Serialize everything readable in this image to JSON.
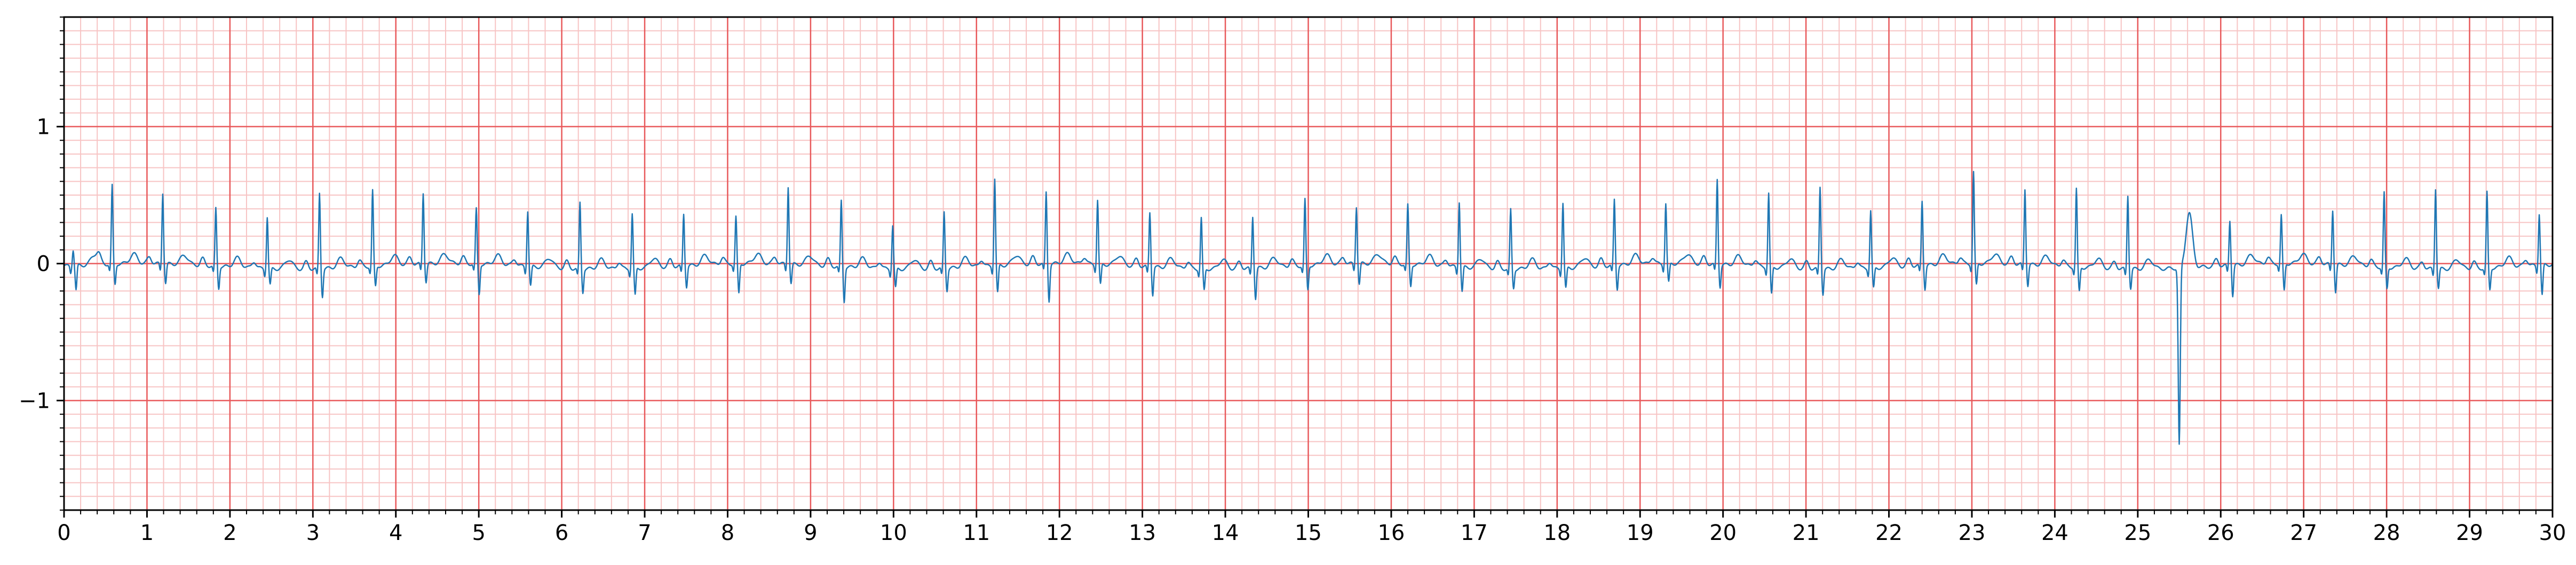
{
  "chart_data": {
    "type": "line",
    "title": "",
    "xlabel": "",
    "ylabel": "",
    "xlim": [
      0,
      30
    ],
    "ylim": [
      -1.8,
      1.8
    ],
    "x_major_ticks": [
      0,
      1,
      2,
      3,
      4,
      5,
      6,
      7,
      8,
      9,
      10,
      11,
      12,
      13,
      14,
      15,
      16,
      17,
      18,
      19,
      20,
      21,
      22,
      23,
      24,
      25,
      26,
      27,
      28,
      29,
      30
    ],
    "x_tick_labels": [
      "0",
      "1",
      "2",
      "3",
      "4",
      "5",
      "6",
      "7",
      "8",
      "9",
      "10",
      "11",
      "12",
      "13",
      "14",
      "15",
      "16",
      "17",
      "18",
      "19",
      "20",
      "21",
      "22",
      "23",
      "24",
      "25",
      "26",
      "27",
      "28",
      "29",
      "30"
    ],
    "x_minor_step": 0.2,
    "y_major_ticks": [
      -1,
      0,
      1
    ],
    "y_tick_labels": [
      "−1",
      "0",
      "1"
    ],
    "y_minor_step": 0.1,
    "grid": true,
    "legend": "none",
    "colors": {
      "signal": "#1f77b4",
      "major_grid": "#e8595b",
      "minor_grid": "#f7c4c4",
      "axes": "#000000"
    },
    "series": [
      {
        "beat_times": [
          0.11,
          0.58,
          1.19,
          1.83,
          2.45,
          3.08,
          3.72,
          4.33,
          4.97,
          5.59,
          6.22,
          6.85,
          7.47,
          8.1,
          8.73,
          9.37,
          9.99,
          10.61,
          11.22,
          11.84,
          12.46,
          13.09,
          13.71,
          14.33,
          14.96,
          15.58,
          16.2,
          16.82,
          17.44,
          18.07,
          18.69,
          19.31,
          19.93,
          20.55,
          21.17,
          21.78,
          22.4,
          23.02,
          23.64,
          24.26,
          24.88,
          25.5,
          26.11,
          26.73,
          27.35,
          27.97,
          28.59,
          29.21,
          29.84
        ],
        "r_amplitudes": [
          0.12,
          0.57,
          0.52,
          0.42,
          0.38,
          0.55,
          0.55,
          0.52,
          0.4,
          0.41,
          0.48,
          0.4,
          0.38,
          0.34,
          0.57,
          0.48,
          0.32,
          0.41,
          0.64,
          0.52,
          0.47,
          0.4,
          0.37,
          0.38,
          0.48,
          0.42,
          0.43,
          0.48,
          0.43,
          0.48,
          0.48,
          0.44,
          0.62,
          0.54,
          0.6,
          0.42,
          0.47,
          0.67,
          0.55,
          0.57,
          0.54,
          -1.3,
          0.33,
          0.35,
          0.4,
          0.54,
          0.59,
          0.55,
          0.38
        ],
        "s_depths": [
          -0.18,
          -0.15,
          -0.14,
          -0.16,
          -0.12,
          -0.2,
          -0.15,
          -0.13,
          -0.22,
          -0.14,
          -0.17,
          -0.2,
          -0.15,
          -0.22,
          -0.14,
          -0.25,
          -0.14,
          -0.16,
          -0.2,
          -0.27,
          -0.15,
          -0.2,
          -0.16,
          -0.22,
          -0.18,
          -0.15,
          -0.16,
          -0.18,
          -0.14,
          -0.15,
          -0.17,
          -0.14,
          -0.16,
          -0.2,
          -0.18,
          -0.15,
          -0.17,
          -0.16,
          -0.15,
          -0.18,
          -0.14,
          0.4,
          -0.22,
          -0.2,
          -0.2,
          -0.16,
          -0.14,
          -0.16,
          -0.22
        ]
      }
    ]
  }
}
